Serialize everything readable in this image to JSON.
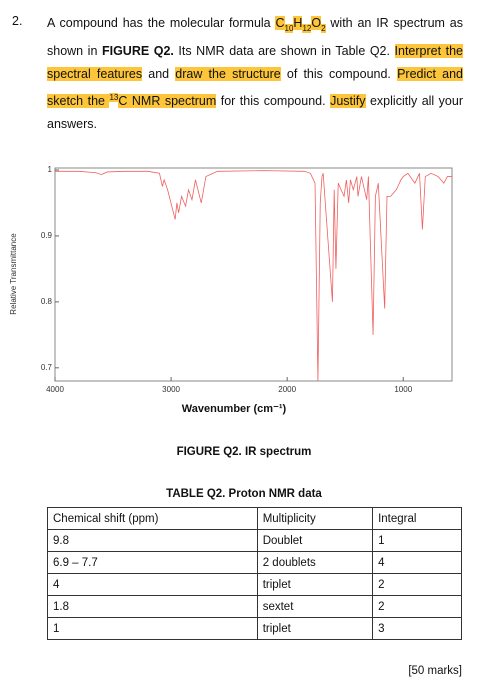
{
  "number": "2.",
  "paragraph": [
    "A compound has the molecular formula ",
    "C",
    "10",
    "H",
    "12",
    "O",
    "2",
    " with an IR spectrum as shown in ",
    "FIGURE Q2.",
    " Its NMR data are shown in Table Q2. ",
    "Interpret the spectral features",
    " and ",
    "draw the structure",
    " of this compound. ",
    "Predict and sketch the ",
    "13",
    "C NMR spectrum",
    " for this compound. ",
    "Justify",
    " explicitly all your answers."
  ],
  "chart_data": {
    "type": "line",
    "y_label": "Relative Transmittance",
    "x_label": "Wavenumber (cm⁻¹)",
    "xlim": [
      4000,
      580
    ],
    "xticks": [
      4000,
      3000,
      2000,
      1000
    ],
    "ylim": [
      0.68,
      1.003
    ],
    "yticks": [
      0.7,
      0.8,
      0.9,
      1
    ],
    "x": [
      4000,
      3800,
      3650,
      3600,
      3550,
      3400,
      3200,
      3100,
      3075,
      3060,
      3030,
      2965,
      2950,
      2935,
      2910,
      2875,
      2850,
      2820,
      2790,
      2740,
      2700,
      2600,
      2200,
      1850,
      1800,
      1760,
      1735,
      1715,
      1700,
      1690,
      1610,
      1595,
      1580,
      1560,
      1510,
      1490,
      1470,
      1455,
      1430,
      1400,
      1390,
      1360,
      1315,
      1300,
      1260,
      1240,
      1215,
      1160,
      1140,
      1110,
      1060,
      1020,
      1000,
      960,
      920,
      900,
      860,
      835,
      810,
      760,
      700,
      650,
      620,
      580
    ],
    "series": [
      {
        "color": "#f06060",
        "values": [
          0.998,
          0.998,
          0.996,
          0.993,
          0.997,
          0.998,
          0.998,
          0.995,
          0.975,
          0.985,
          0.97,
          0.925,
          0.95,
          0.935,
          0.96,
          0.945,
          0.97,
          0.955,
          0.985,
          0.95,
          0.99,
          0.998,
          0.999,
          0.998,
          0.995,
          0.98,
          0.68,
          0.95,
          0.99,
          0.995,
          0.8,
          0.97,
          0.85,
          0.98,
          0.96,
          0.985,
          0.95,
          0.985,
          0.97,
          0.99,
          0.96,
          0.99,
          0.955,
          0.99,
          0.75,
          0.96,
          0.98,
          0.79,
          0.96,
          0.96,
          0.97,
          0.985,
          0.99,
          0.995,
          0.985,
          0.98,
          0.995,
          0.91,
          0.99,
          0.995,
          0.99,
          0.98,
          0.99,
          0.99
        ]
      }
    ]
  },
  "figure_caption": "FIGURE Q2. IR spectrum",
  "table": {
    "caption": "TABLE Q2. Proton NMR data",
    "rows": [
      [
        "Chemical shift (ppm)",
        "Multiplicity",
        "Integral"
      ],
      [
        "9.8",
        "Doublet",
        "1"
      ],
      [
        "6.9 – 7.7",
        "2 doublets",
        "4"
      ],
      [
        "4",
        "triplet",
        "2"
      ],
      [
        "1.8",
        "sextet",
        "2"
      ],
      [
        "1",
        "triplet",
        "3"
      ]
    ]
  },
  "marks": "[50 marks]"
}
